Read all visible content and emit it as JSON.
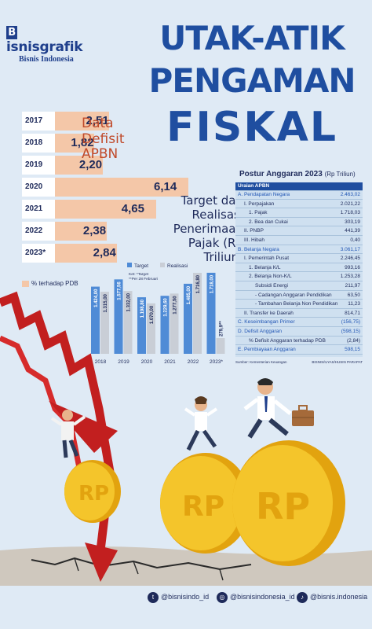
{
  "brand": {
    "logo_letter": "B",
    "logo_rest": "isnisgrafik",
    "sub": "Bisnis Indonesia"
  },
  "headline": {
    "line1": "UTAK-ATIK",
    "line2": "PENGAMAN",
    "line3": "FISKAL"
  },
  "colors": {
    "title_blue": "#1f4ea0",
    "deficit_bar": "#f4c7a8",
    "target_bar": "#4f8bd6",
    "realisasi_bar": "#c9ced6",
    "arrow_red": "#d62b2b",
    "coin_gold": "#f2b818"
  },
  "chart_data": [
    {
      "type": "bar",
      "title": "Data Defisit APBN",
      "title_lines": [
        "Data",
        "Defisit",
        "APBN"
      ],
      "orientation": "horizontal",
      "categories": [
        "2017",
        "2018",
        "2019",
        "2020",
        "2021",
        "2022",
        "2023*"
      ],
      "values": [
        2.51,
        1.82,
        2.2,
        6.14,
        4.65,
        2.38,
        2.84
      ],
      "value_labels": [
        "2,51",
        "1,82",
        "2,20",
        "6,14",
        "4,65",
        "2,38",
        "2,84"
      ],
      "legend": [
        "% terhadap PDB"
      ],
      "xlim": [
        0,
        6.14
      ]
    },
    {
      "type": "bar",
      "title_lines": [
        "Target dan",
        "Realisasi",
        "Penerimaan",
        "Pajak (Rp Triliun)"
      ],
      "categories": [
        "2018",
        "2019",
        "2020",
        "2021",
        "2022",
        "2023*"
      ],
      "series": [
        {
          "name": "Target",
          "values": [
            1424.0,
            1577.56,
            1198.8,
            1229.6,
            1485.0,
            1718.0
          ],
          "labels": [
            "1.424,00",
            "1.577,56",
            "1.198,80",
            "1.229,60",
            "1.485,00",
            "1.718,00"
          ]
        },
        {
          "name": "Realisasi",
          "values": [
            1315.0,
            1332.0,
            1070.0,
            1277.5,
            1716.8,
            279.9
          ],
          "labels": [
            "1.315,00",
            "1.332,00",
            "1.070,00",
            "1.277,50",
            "1.716,80",
            "279,9**"
          ]
        }
      ],
      "notes": [
        "Ket: *Target",
        "**Per 28 Februari"
      ],
      "ylim": [
        0,
        1800
      ]
    }
  ],
  "postur": {
    "title": "Postur Anggaran 2023",
    "unit": "(Rp Triliun)",
    "header": "Uraian APBN",
    "rows": [
      {
        "label": "A. Pendapatan Negara",
        "value": "2.463,02",
        "hl": true
      },
      {
        "label": "I. Perpajakan",
        "value": "2.021,22",
        "hl": false
      },
      {
        "label": "1. Pajak",
        "value": "1.718,03",
        "hl": false
      },
      {
        "label": "2. Bea dan Cukai",
        "value": "303,19",
        "hl": false
      },
      {
        "label": "II. PNBP",
        "value": "441,39",
        "hl": false
      },
      {
        "label": "III. Hibah",
        "value": "0,40",
        "hl": false
      },
      {
        "label": "B. Belanja Negara",
        "value": "3.061,17",
        "hl": true
      },
      {
        "label": "I. Pemerintah Pusat",
        "value": "2.246,45",
        "hl": false
      },
      {
        "label": "1. Belanja K/L",
        "value": "993,16",
        "hl": false
      },
      {
        "label": "2. Belanja Non-K/L",
        "value": "1.253,28",
        "hl": false
      },
      {
        "label": "Subsidi Energi",
        "value": "211,97",
        "hl": false
      },
      {
        "label": "- Cadangan Anggaran Pendidikan",
        "value": "63,50",
        "hl": false
      },
      {
        "label": "- Tambahan Belanja Non Pendidikan",
        "value": "11,23",
        "hl": false
      },
      {
        "label": "II. Transfer ke Daerah",
        "value": "814,71",
        "hl": false
      },
      {
        "label": "C. Keseimbangan Primer",
        "value": "(156,75)",
        "hl": true
      },
      {
        "label": "D. Defisit Anggaran",
        "value": "(598,15)",
        "hl": true
      },
      {
        "label": "% Defisit Anggaran terhadap PDB",
        "value": "(2,84)",
        "hl": false
      },
      {
        "label": "E. Pembiayaan Anggaran",
        "value": "598,15",
        "hl": true
      }
    ],
    "source": "Sumber: Kementerian Keuangan",
    "credit": "BISNIS/ILYAS/HUSIN PARAPAT"
  },
  "coins": {
    "label": "RP"
  },
  "social": {
    "twitter": "@bisnisindo_id",
    "instagram": "@bisnisindonesia_id",
    "tiktok": "@bisnis.indonesia"
  },
  "icons": {
    "twitter": "twitter-icon",
    "instagram": "instagram-icon",
    "tiktok": "tiktok-icon",
    "briefcase": "briefcase-icon"
  }
}
